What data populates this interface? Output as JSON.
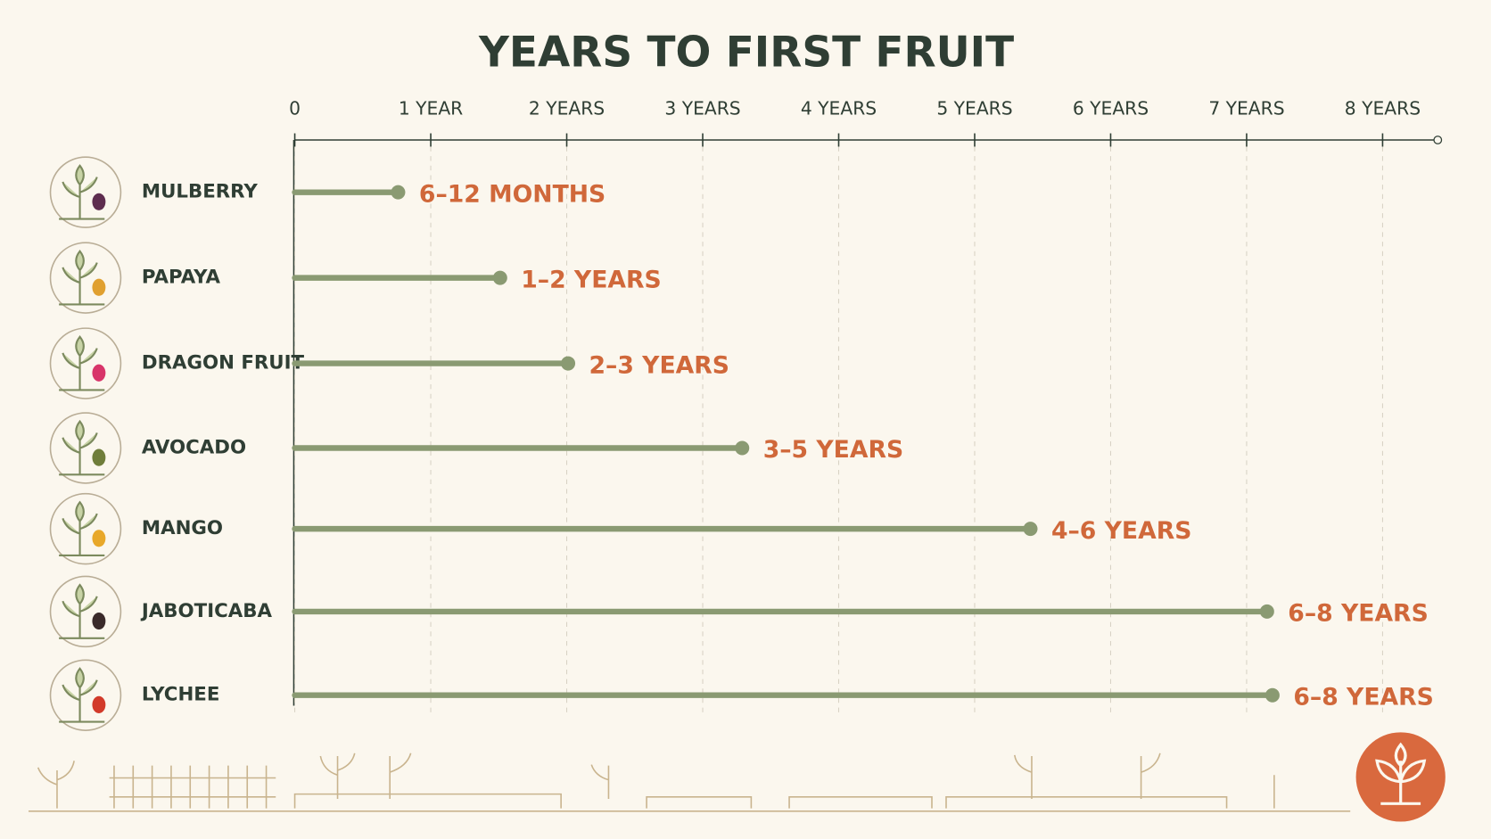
{
  "chart_data": {
    "type": "lollipop",
    "title": "YEARS TO FIRST FRUIT",
    "categories": [
      "MULBERRY",
      "PAPAYA",
      "DRAGON FRUIT",
      "AVOCADO",
      "MANGO",
      "JABOTICABA",
      "LYCHEE"
    ],
    "values": [
      0.76,
      1.51,
      2.01,
      3.29,
      5.41,
      7.15,
      7.19
    ],
    "range_labels": [
      "6–12 MONTHS",
      "1–2 YEARS",
      "2–3 YEARS",
      "3–5 YEARS",
      "4–6 YEARS",
      "6–8 YEARS",
      "6–8 YEARS"
    ],
    "color": "#8a9a72",
    "label_color": "#d0683a",
    "fruit_colors": [
      "#5e2d4f",
      "#e0a030",
      "#d8356a",
      "#6f7d3a",
      "#e8a82a",
      "#3a2a2a",
      "#d23a2a"
    ],
    "xlim": [
      0,
      8.4
    ],
    "xticks": [
      0,
      {
        "value": 1,
        "label": "1 YEAR"
      },
      {
        "value": 2,
        "label": "2 YEARS"
      },
      {
        "value": 3,
        "label": "3 YEARS"
      },
      {
        "value": 4,
        "label": "4 YEARS"
      },
      {
        "value": 5,
        "label": "5 YEARS"
      },
      {
        "value": 6,
        "label": "6 YEARS"
      },
      {
        "value": 7,
        "label": "7 YEARS"
      },
      {
        "value": 8,
        "label": "8 YEARS"
      }
    ],
    "grid": true
  }
}
